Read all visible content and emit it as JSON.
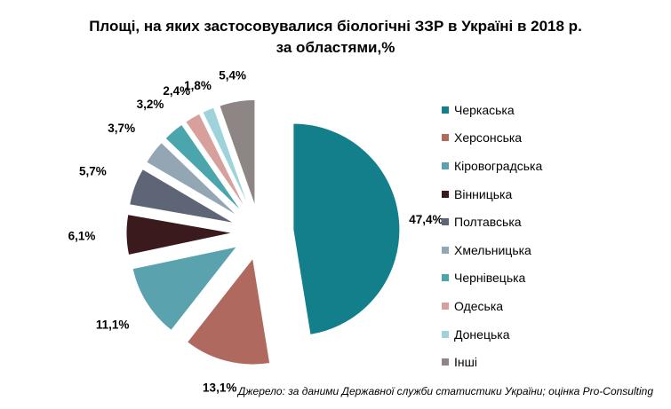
{
  "chart_data": {
    "type": "pie",
    "title_line1": "Площі, на яких застосовувалися біологічні ЗЗР в Україні в 2018 р.",
    "title_line2": "за областями,%",
    "categories": [
      "Черкаська",
      "Херсонська",
      "Кіровоградська",
      "Вінницька",
      "Полтавська",
      "Хмельницька",
      "Чернівецька",
      "Одеська",
      "Донецька",
      "Інші"
    ],
    "values": [
      47.4,
      13.1,
      11.1,
      6.1,
      5.7,
      3.7,
      3.2,
      2.4,
      1.8,
      5.4
    ],
    "value_labels": [
      "47,4%",
      "13,1%",
      "11,1%",
      "6,1%",
      "5,7%",
      "3,7%",
      "3,2%",
      "2,4%",
      "1,8%",
      "5,4%"
    ],
    "colors": [
      "#137f8a",
      "#b0695f",
      "#5aa3ae",
      "#3a1a1c",
      "#5e6577",
      "#93a6b3",
      "#4aa5ad",
      "#d7a09c",
      "#9fd3dc",
      "#8e8585"
    ],
    "exploded": true,
    "legend_position": "right"
  },
  "source_note": "Джерело: за даними Державної служби статистики України; оцінка Pro-Consulting"
}
